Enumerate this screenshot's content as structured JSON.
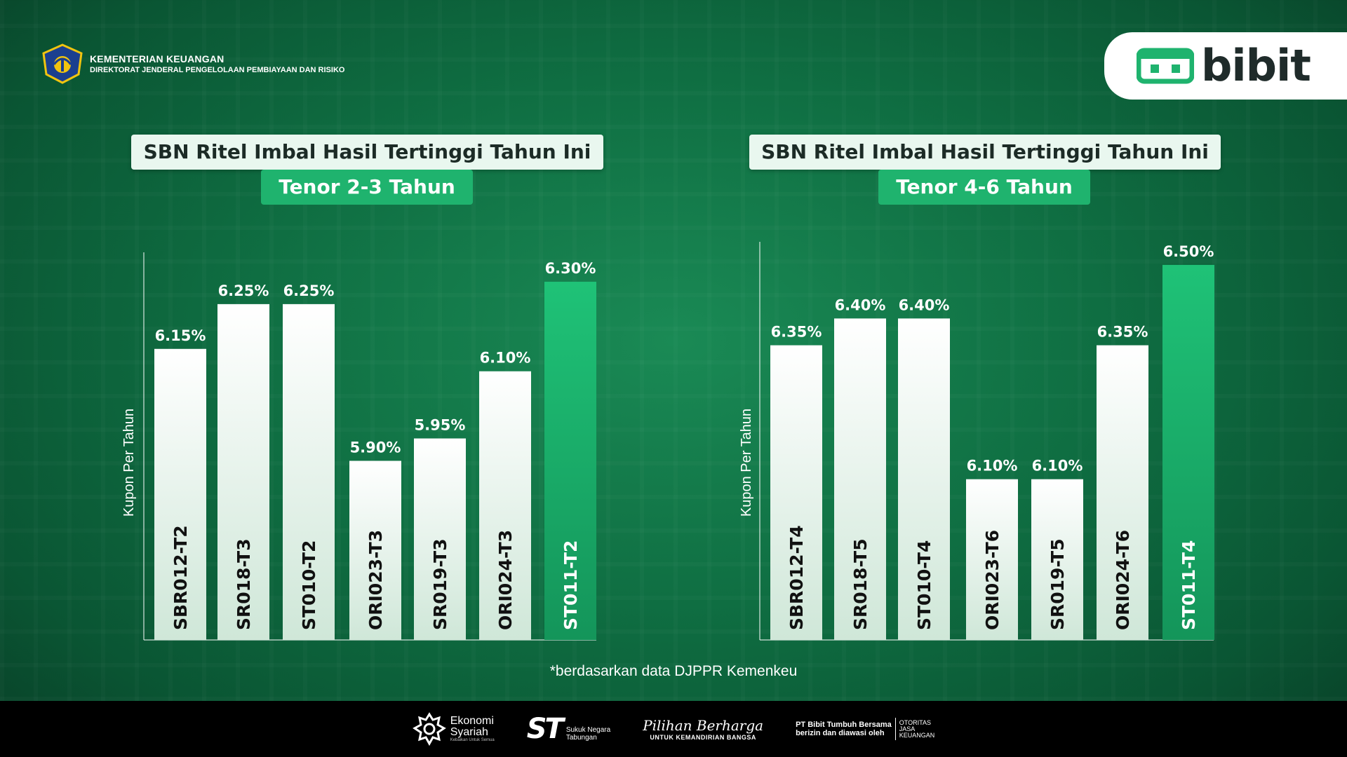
{
  "header": {
    "ministry_line1": "KEMENTERIAN KEUANGAN",
    "ministry_line2": "DIREKTORAT JENDERAL PENGELOLAAN PEMBIAYAAN DAN RISIKO",
    "brand": "bibit"
  },
  "colors": {
    "background": "#0f6e42",
    "bar_default": "#e9f5ee",
    "bar_highlight": "#1fb36e",
    "title_bg": "#e9f7ef",
    "subtitle_bg": "#1fb36e"
  },
  "chart_data": [
    {
      "type": "bar",
      "title": "SBN Ritel Imbal Hasil Tertinggi Tahun Ini",
      "subtitle": "Tenor 2-3 Tahun",
      "ylabel": "Kupon Per Tahun",
      "xlabel": "",
      "categories": [
        "SBR012-T2",
        "SR018-T3",
        "ST010-T2",
        "ORI023-T3",
        "SR019-T3",
        "ORI024-T3",
        "ST011-T2"
      ],
      "values": [
        6.15,
        6.25,
        6.25,
        5.9,
        5.95,
        6.1,
        6.3
      ],
      "labels": [
        "6.15%",
        "6.25%",
        "6.25%",
        "5.90%",
        "5.95%",
        "6.10%",
        "6.30%"
      ],
      "highlight_index": 6,
      "ylim": [
        5.5,
        6.35
      ],
      "grid": false
    },
    {
      "type": "bar",
      "title": "SBN Ritel Imbal Hasil Tertinggi Tahun Ini",
      "subtitle": "Tenor 4-6 Tahun",
      "ylabel": "Kupon Per Tahun",
      "xlabel": "",
      "categories": [
        "SBR012-T4",
        "SR018-T5",
        "ST010-T4",
        "ORI023-T6",
        "SR019-T5",
        "ORI024-T6",
        "ST011-T4"
      ],
      "values": [
        6.35,
        6.4,
        6.4,
        6.1,
        6.1,
        6.35,
        6.5
      ],
      "labels": [
        "6.35%",
        "6.40%",
        "6.40%",
        "6.10%",
        "6.10%",
        "6.35%",
        "6.50%"
      ],
      "highlight_index": 6,
      "ylim": [
        5.8,
        6.53
      ],
      "grid": false
    }
  ],
  "footnote": "*berdasarkan data DJPPR Kemenkeu",
  "footer": {
    "ekonomi_l1": "Ekonomi",
    "ekonomi_l2": "Syariah",
    "ekonomi_tag": "Kebaikan Untuk Semua",
    "st_mark": "ST",
    "st_l1": "Sukuk Negara",
    "st_l2": "Tabungan",
    "pilihan_l1": "Pilihan Berharga",
    "pilihan_l2": "UNTUK KEMANDIRIAN BANGSA",
    "ojk_l1": "PT Bibit Tumbuh Bersama",
    "ojk_l2": "berizin dan diawasi oleh",
    "ojk_o1": "OTORITAS",
    "ojk_o2": "JASA",
    "ojk_o3": "KEUANGAN"
  }
}
